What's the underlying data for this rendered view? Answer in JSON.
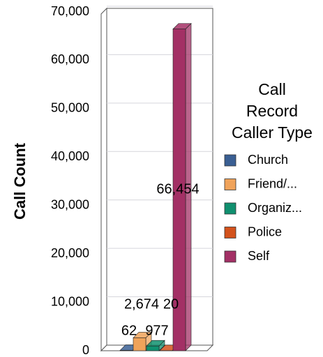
{
  "chart_data": {
    "type": "bar3d",
    "y_axis_label": "Call Count",
    "legend_title": [
      "Call",
      "Record",
      "Caller Type"
    ],
    "categories": [
      "Church",
      "Friend/...",
      "Organiz...",
      "Police",
      "Self"
    ],
    "values": [
      62,
      2674,
      977,
      20,
      66454
    ],
    "value_labels": [
      "62",
      "2,674",
      "977",
      "20",
      "66,454"
    ],
    "colors": [
      "#3a5f93",
      "#f0a35a",
      "#10906f",
      "#d3521c",
      "#a33065"
    ],
    "ylim": [
      0,
      70000
    ],
    "yticks": [
      0,
      {
        "value": 10000,
        "label": "10,000"
      },
      {
        "value": 20000,
        "label": "20,000"
      },
      {
        "value": 30000,
        "label": "30,000"
      },
      {
        "value": 40000,
        "label": "40,000"
      },
      {
        "value": 50000,
        "label": "50,000"
      },
      {
        "value": 60000,
        "label": "60,000"
      },
      {
        "value": 70000,
        "label": "70,000"
      }
    ],
    "grid": true
  }
}
